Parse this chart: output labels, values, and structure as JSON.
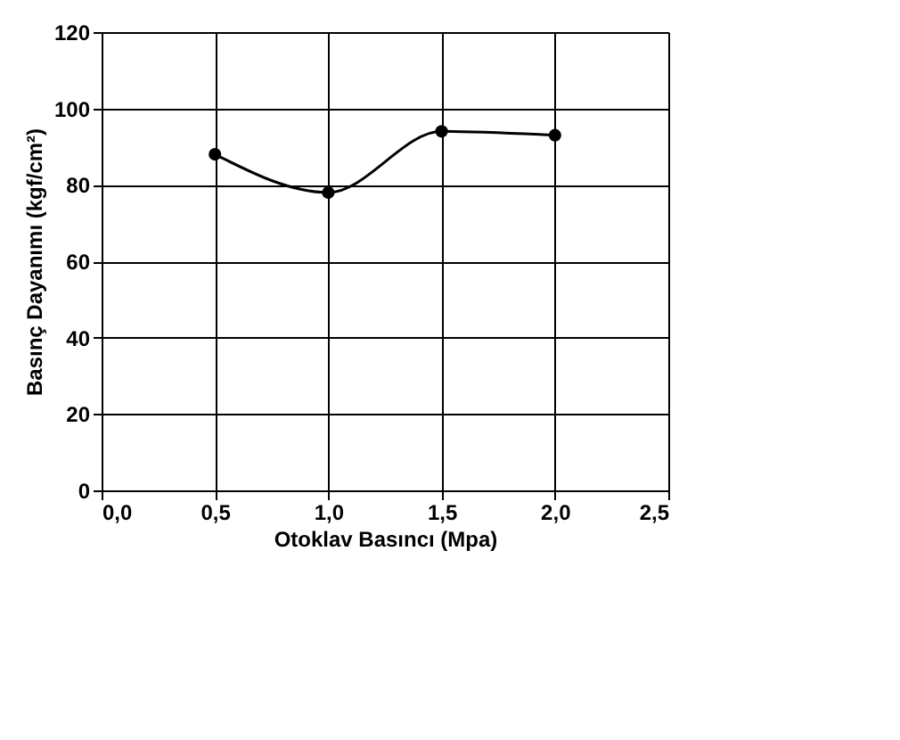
{
  "chart_data": {
    "type": "line",
    "xlabel": "Otoklav Basıncı (Mpa)",
    "ylabel": "Basınç Dayanımı (kgf/cm²)",
    "x": [
      0.5,
      1.0,
      1.5,
      2.0
    ],
    "series": [
      {
        "color": "#000000",
        "values": [
          88,
          78,
          94,
          93
        ]
      }
    ],
    "xlim": [
      0,
      2.5
    ],
    "xticks": [
      {
        "value": 0,
        "label": "0,0"
      },
      {
        "value": 0.5,
        "label": "0,5"
      },
      {
        "value": 1.0,
        "label": "1,0"
      },
      {
        "value": 1.5,
        "label": "1,5"
      },
      {
        "value": 2.0,
        "label": "2,0"
      },
      {
        "value": 2.5,
        "label": "2,5"
      }
    ],
    "ylim": [
      0,
      120
    ],
    "yticks": [
      0,
      20,
      40,
      60,
      80,
      100,
      120
    ],
    "grid": true,
    "marker": "circle",
    "line_style": "solid"
  }
}
